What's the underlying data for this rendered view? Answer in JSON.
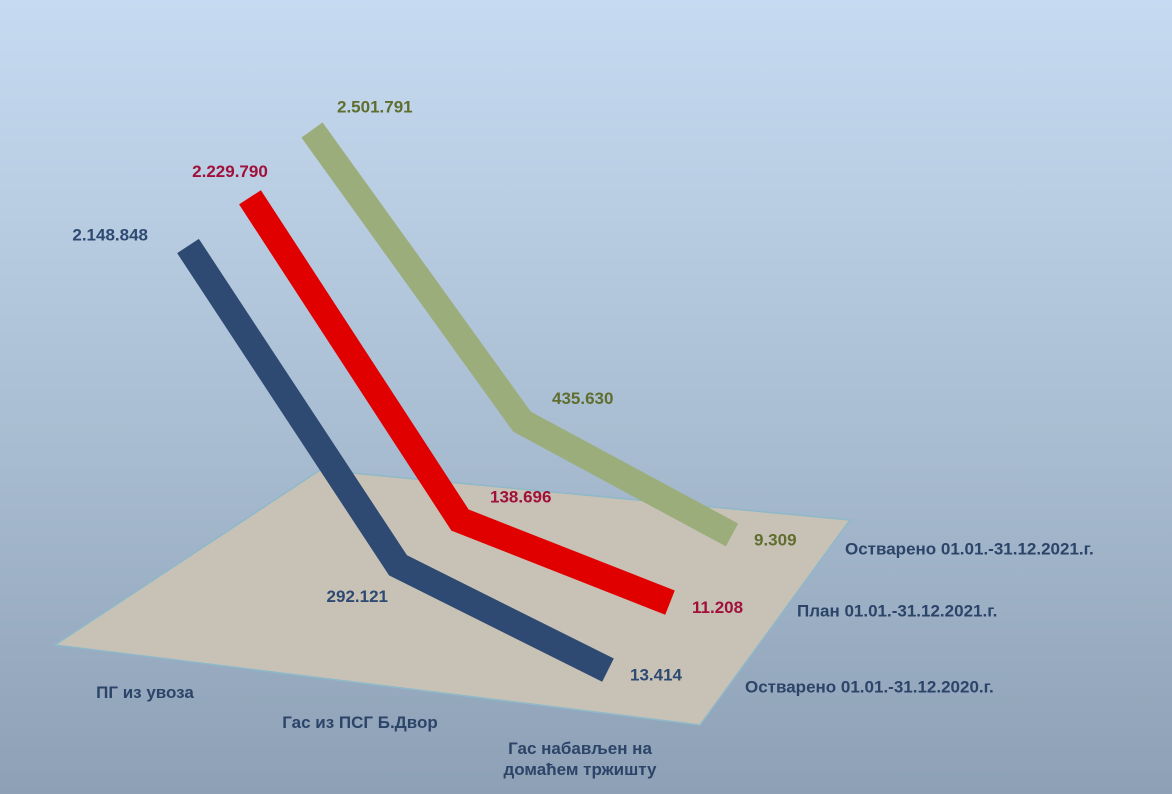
{
  "chart_data": {
    "type": "line",
    "categories": [
      "ПГ из увоза",
      "Гас из ПСГ Б.Двор",
      "Гас набављен на домаћем тржишту"
    ],
    "series": [
      {
        "name": "Остварено 01.01.-31.12.2020.г.",
        "color": "#2e4a72",
        "label_color": "#2e4a72",
        "values": [
          2148848,
          292121,
          13414
        ],
        "value_labels": [
          "2.148.848",
          "292.121",
          "13.414"
        ]
      },
      {
        "name": "План 01.01.-31.12.2021.г.",
        "color": "#e00000",
        "label_color": "#a0103a",
        "values": [
          2229790,
          138696,
          11208
        ],
        "value_labels": [
          "2.229.790",
          "138.696",
          "11.208"
        ]
      },
      {
        "name": "Остварено 01.01.-31.12.2021.г.",
        "color": "#9cad7c",
        "label_color": "#5f6e2e",
        "values": [
          2501791,
          435630,
          9309
        ],
        "value_labels": [
          "2.501.791",
          "435.630",
          "9.309"
        ]
      }
    ]
  }
}
